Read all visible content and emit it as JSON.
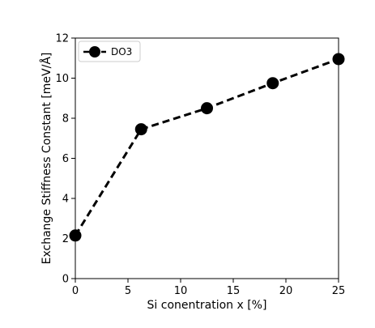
{
  "chart_data": {
    "type": "line",
    "title": "",
    "xlabel": "Si conentration x [%]",
    "ylabel": "Exchange Stiffness Constant [meV/Å]",
    "xlim": [
      0,
      25
    ],
    "ylim": [
      0,
      12
    ],
    "xticks": [
      0,
      5,
      10,
      15,
      20,
      25
    ],
    "yticks": [
      0,
      2,
      4,
      6,
      8,
      10,
      12
    ],
    "grid": false,
    "legend_position": "top-left",
    "series": [
      {
        "name": "DO3",
        "color": "#000000",
        "line_style": "dashed",
        "marker": "circle",
        "x": [
          0,
          6.25,
          12.5,
          18.75,
          25
        ],
        "y": [
          2.15,
          7.45,
          8.5,
          9.75,
          10.95
        ]
      }
    ]
  }
}
